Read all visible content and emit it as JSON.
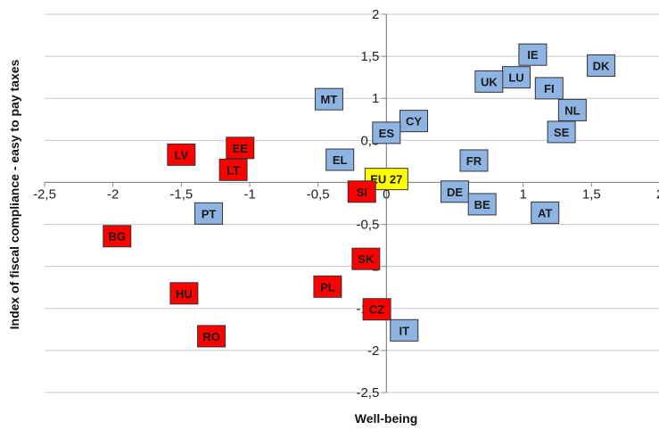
{
  "chart_data": {
    "type": "scatter",
    "title": "",
    "xlabel": "Well-being",
    "ylabel": "Index of fiscal compliance - easy to pay taxes",
    "xlim": [
      -2.5,
      2
    ],
    "ylim": [
      -2.5,
      2
    ],
    "x_ticks": [
      -2.5,
      -2,
      -1.5,
      -1,
      -0.5,
      0,
      0.5,
      1,
      1.5,
      2
    ],
    "y_ticks": [
      -2.5,
      -2,
      -1.5,
      -1,
      -0.5,
      0,
      0.5,
      1,
      1.5,
      2
    ],
    "x_tick_labels": [
      "-2,5",
      "-2",
      "-1,5",
      "-1",
      "-0,5",
      "0",
      "0,5",
      "1",
      "1,5",
      "2"
    ],
    "y_tick_labels": [
      "-2,5",
      "-2",
      "-1,5",
      "-1",
      "-0,5",
      "0",
      "0,5",
      "1",
      "1,5",
      "2"
    ],
    "grid": "horizontal",
    "colors": {
      "blue": "#8eb4e3",
      "red": "#ff0000",
      "yellow": "#ffff00",
      "axis": "#888888",
      "grid": "#c8c8c8"
    },
    "points": [
      {
        "label": "IE",
        "x": 1.07,
        "y": 1.52,
        "color": "blue"
      },
      {
        "label": "DK",
        "x": 1.57,
        "y": 1.39,
        "color": "blue"
      },
      {
        "label": "LU",
        "x": 0.95,
        "y": 1.25,
        "color": "blue"
      },
      {
        "label": "UK",
        "x": 0.75,
        "y": 1.2,
        "color": "blue"
      },
      {
        "label": "FI",
        "x": 1.19,
        "y": 1.12,
        "color": "blue"
      },
      {
        "label": "MT",
        "x": -0.42,
        "y": 0.99,
        "color": "blue"
      },
      {
        "label": "NL",
        "x": 1.36,
        "y": 0.86,
        "color": "blue"
      },
      {
        "label": "CY",
        "x": 0.2,
        "y": 0.73,
        "color": "blue"
      },
      {
        "label": "SE",
        "x": 1.28,
        "y": 0.6,
        "color": "blue"
      },
      {
        "label": "ES",
        "x": 0.0,
        "y": 0.59,
        "color": "blue"
      },
      {
        "label": "EL",
        "x": -0.34,
        "y": 0.27,
        "color": "blue"
      },
      {
        "label": "FR",
        "x": 0.64,
        "y": 0.26,
        "color": "blue"
      },
      {
        "label": "EU 27",
        "x": 0.0,
        "y": 0.04,
        "color": "yellow"
      },
      {
        "label": "DE",
        "x": 0.5,
        "y": -0.11,
        "color": "blue"
      },
      {
        "label": "BE",
        "x": 0.7,
        "y": -0.26,
        "color": "blue"
      },
      {
        "label": "AT",
        "x": 1.16,
        "y": -0.36,
        "color": "blue"
      },
      {
        "label": "PT",
        "x": -1.3,
        "y": -0.37,
        "color": "blue"
      },
      {
        "label": "IT",
        "x": 0.13,
        "y": -1.76,
        "color": "blue"
      },
      {
        "label": "EE",
        "x": -1.07,
        "y": 0.41,
        "color": "red"
      },
      {
        "label": "LV",
        "x": -1.5,
        "y": 0.33,
        "color": "red"
      },
      {
        "label": "LT",
        "x": -1.12,
        "y": 0.15,
        "color": "red"
      },
      {
        "label": "SI",
        "x": -0.18,
        "y": -0.11,
        "color": "red"
      },
      {
        "label": "BG",
        "x": -1.97,
        "y": -0.64,
        "color": "red"
      },
      {
        "label": "SK",
        "x": -0.15,
        "y": -0.91,
        "color": "red"
      },
      {
        "label": "PL",
        "x": -0.43,
        "y": -1.24,
        "color": "red"
      },
      {
        "label": "HU",
        "x": -1.48,
        "y": -1.32,
        "color": "red"
      },
      {
        "label": "CZ",
        "x": -0.07,
        "y": -1.51,
        "color": "red"
      },
      {
        "label": "RO",
        "x": -1.28,
        "y": -1.83,
        "color": "red"
      }
    ]
  }
}
